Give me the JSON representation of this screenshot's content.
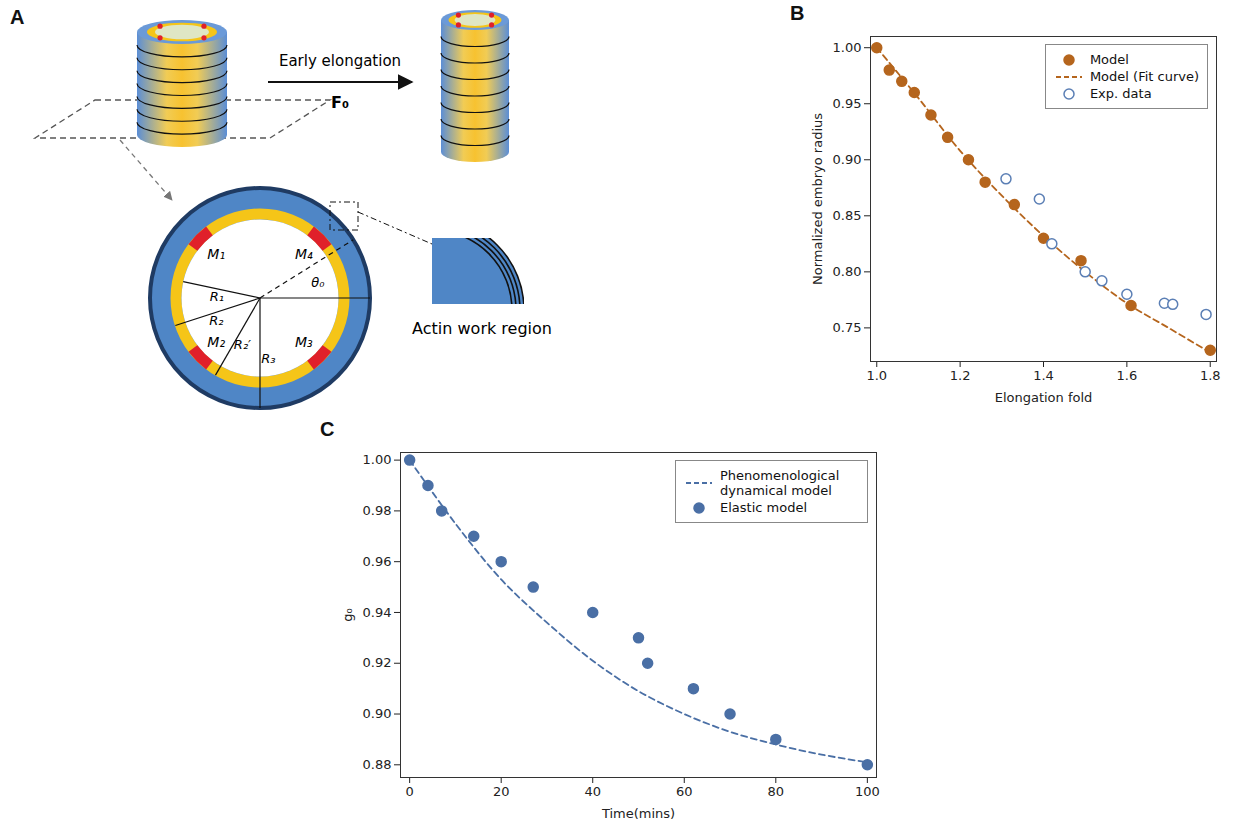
{
  "diagram": {
    "panel_label": "A",
    "arrow_label": "Early elongation",
    "force_label": "F₀",
    "motor_labels": [
      "M₁",
      "M₂",
      "M₃",
      "M₄"
    ],
    "radius_labels": [
      "R₁",
      "R₂",
      "R₂′",
      "R₃"
    ],
    "angle_label": "θ₀",
    "inset_label": "Actin work region"
  },
  "chart_data": [
    {
      "type": "scatter",
      "panel_label": "B",
      "x_label": "Elongation fold",
      "y_label": "Normalized embryo radius",
      "xlim": [
        0.985,
        1.815
      ],
      "xticks": [
        {
          "value": 1,
          "label": "1.0"
        },
        {
          "value": 1.2,
          "label": "1.2"
        },
        {
          "value": 1.4,
          "label": "1.4"
        },
        {
          "value": 1.6,
          "label": "1.6"
        },
        {
          "value": 1.8,
          "label": "1.8"
        }
      ],
      "ylim": [
        0.72,
        1.01
      ],
      "yticks": [
        0.75,
        {
          "value": 0.8,
          "label": "0.80"
        },
        0.85,
        {
          "value": 0.9,
          "label": "0.90"
        },
        0.95,
        {
          "value": 1,
          "label": "1.00"
        }
      ],
      "grid": false,
      "legend": "top-right",
      "series": [
        {
          "name": "Model",
          "type": "scatter",
          "marker": "circle",
          "color": "#b5651d",
          "x": [
            1.0,
            1.03,
            1.06,
            1.09,
            1.13,
            1.17,
            1.22,
            1.26,
            1.33,
            1.4,
            1.49,
            1.61,
            1.8
          ],
          "values": [
            1.0,
            0.98,
            0.97,
            0.96,
            0.94,
            0.92,
            0.9,
            0.88,
            0.86,
            0.83,
            0.81,
            0.77,
            0.73
          ]
        },
        {
          "name": "Model (Fit curve)",
          "type": "line",
          "line_style": "dashed",
          "color": "#b5651d",
          "x": [
            1.0,
            1.1,
            1.2,
            1.3,
            1.4,
            1.5,
            1.6,
            1.7,
            1.8
          ],
          "values": [
            1.0,
            0.955,
            0.908,
            0.868,
            0.832,
            0.8,
            0.772,
            0.75,
            0.728
          ]
        },
        {
          "name": "Exp. data",
          "type": "scatter",
          "marker": "ring",
          "color": "#5b7fb5",
          "x": [
            1.31,
            1.39,
            1.42,
            1.5,
            1.54,
            1.6,
            1.69,
            1.71,
            1.79
          ],
          "values": [
            0.883,
            0.865,
            0.825,
            0.8,
            0.792,
            0.78,
            0.772,
            0.771,
            0.762
          ]
        }
      ]
    },
    {
      "type": "scatter",
      "panel_label": "C",
      "x_label": "Time(mins)",
      "y_label": "g₀",
      "xlim": [
        -2,
        102
      ],
      "xticks": [
        0,
        20,
        40,
        60,
        80,
        100
      ],
      "ylim": [
        0.875,
        1.003
      ],
      "yticks": [
        0.88,
        {
          "value": 0.9,
          "label": "0.90"
        },
        0.92,
        0.94,
        0.96,
        0.98,
        {
          "value": 1,
          "label": "1.00"
        }
      ],
      "grid": false,
      "legend": "top-right",
      "series": [
        {
          "name": "Phenomenological dynamical model",
          "type": "line",
          "line_style": "dashed",
          "color": "#4a6fa5",
          "x": [
            0,
            10,
            20,
            30,
            40,
            50,
            60,
            70,
            80,
            90,
            100
          ],
          "values": [
            1.0,
            0.975,
            0.953,
            0.936,
            0.921,
            0.909,
            0.9,
            0.893,
            0.888,
            0.884,
            0.881
          ]
        },
        {
          "name": "Elastic model",
          "type": "scatter",
          "marker": "circle",
          "color": "#4a6fa5",
          "x": [
            0,
            4,
            7,
            14,
            20,
            27,
            40,
            50,
            52,
            62,
            70,
            80,
            100
          ],
          "values": [
            1.0,
            0.99,
            0.98,
            0.97,
            0.96,
            0.95,
            0.94,
            0.93,
            0.92,
            0.91,
            0.9,
            0.89,
            0.88
          ]
        }
      ]
    }
  ]
}
